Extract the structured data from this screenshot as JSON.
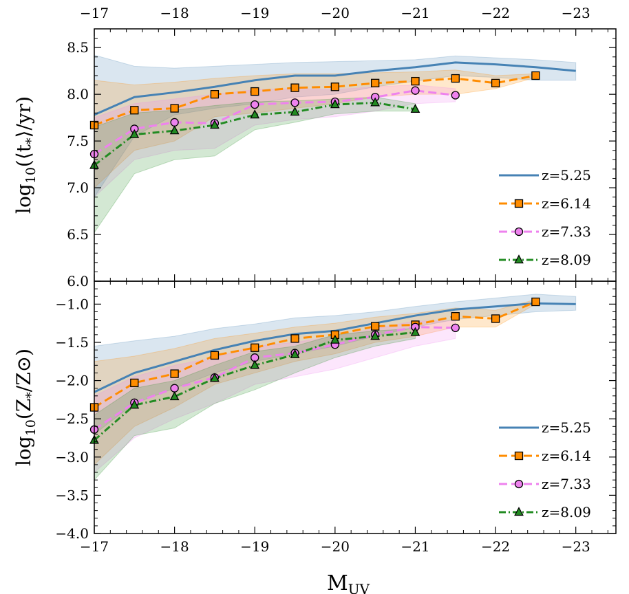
{
  "chart_data": [
    {
      "type": "line",
      "panel": "top",
      "ylabel_main": "log",
      "ylabel_sub": "10",
      "ylabel_rest": "(⟨t",
      "ylabel_star": "*",
      "ylabel_end": "⟩/yr)",
      "xlim": [
        -17,
        -23.5
      ],
      "ylim": [
        6.0,
        8.7
      ],
      "yticks": [
        6.0,
        6.5,
        7.0,
        7.5,
        8.0,
        8.5
      ],
      "ytick_labels": [
        "6.0",
        "6.5",
        "7.0",
        "7.5",
        "8.0",
        "8.5"
      ],
      "xticks": [
        -17,
        -18,
        -19,
        -20,
        -21,
        -22,
        -23
      ],
      "xtick_labels": [
        "−17",
        "−18",
        "−19",
        "−20",
        "−21",
        "−22",
        "−23"
      ],
      "legend_position": "lower-right",
      "series": [
        {
          "name": "z=5.25",
          "color": "#4682b4",
          "style": "solid",
          "marker": "none",
          "x": [
            -17,
            -17.5,
            -18,
            -18.5,
            -19,
            -19.5,
            -20,
            -20.5,
            -21,
            -21.5,
            -22,
            -22.5,
            -23
          ],
          "y": [
            7.78,
            7.97,
            8.02,
            8.08,
            8.15,
            8.2,
            8.2,
            8.25,
            8.29,
            8.34,
            8.32,
            8.29,
            8.25
          ],
          "band_lo": [
            6.9,
            7.55,
            7.78,
            7.85,
            7.9,
            7.97,
            8.0,
            8.08,
            8.14,
            8.2,
            8.18,
            8.15,
            8.15
          ],
          "band_hi": [
            8.42,
            8.3,
            8.28,
            8.3,
            8.32,
            8.34,
            8.35,
            8.36,
            8.37,
            8.41,
            8.39,
            8.37,
            8.34
          ]
        },
        {
          "name": "z=6.14",
          "color": "#ff8c00",
          "style": "dashed",
          "marker": "square",
          "x": [
            -17,
            -17.5,
            -18,
            -18.5,
            -19,
            -19.5,
            -20,
            -20.5,
            -21,
            -21.5,
            -22,
            -22.5
          ],
          "y": [
            7.67,
            7.83,
            7.85,
            8.0,
            8.03,
            8.07,
            8.08,
            8.12,
            8.14,
            8.17,
            8.12,
            8.2
          ],
          "band_lo": [
            7.0,
            7.4,
            7.5,
            7.76,
            7.8,
            7.85,
            7.9,
            7.97,
            8.0,
            8.0,
            8.06,
            8.18
          ],
          "band_hi": [
            8.15,
            8.1,
            8.13,
            8.17,
            8.2,
            8.22,
            8.22,
            8.23,
            8.24,
            8.26,
            8.2,
            8.22
          ]
        },
        {
          "name": "z=7.33",
          "color": "#ee82ee",
          "style": "dashed",
          "marker": "circle",
          "x": [
            -17,
            -17.5,
            -18,
            -18.5,
            -19,
            -19.5,
            -20,
            -20.5,
            -21,
            -21.5
          ],
          "y": [
            7.36,
            7.63,
            7.7,
            7.69,
            7.89,
            7.91,
            7.92,
            7.97,
            8.04,
            7.99
          ],
          "band_lo": [
            6.9,
            7.3,
            7.4,
            7.42,
            7.67,
            7.73,
            7.76,
            7.82,
            7.9,
            7.92
          ],
          "band_hi": [
            7.75,
            7.9,
            7.95,
            8.0,
            8.05,
            8.06,
            8.05,
            8.08,
            8.1,
            8.06
          ]
        },
        {
          "name": "z=8.09",
          "color": "#228b22",
          "style": "dashdot",
          "marker": "triangle",
          "x": [
            -17,
            -17.5,
            -18,
            -18.5,
            -19,
            -19.5,
            -20,
            -20.5,
            -21
          ],
          "y": [
            7.24,
            7.57,
            7.61,
            7.67,
            7.78,
            7.81,
            7.89,
            7.91,
            7.84
          ],
          "band_lo": [
            6.52,
            7.15,
            7.3,
            7.34,
            7.62,
            7.7,
            7.79,
            7.82,
            7.82
          ],
          "band_hi": [
            7.65,
            7.8,
            7.83,
            7.88,
            7.92,
            7.93,
            7.95,
            7.97,
            7.9
          ]
        }
      ]
    },
    {
      "type": "line",
      "panel": "bottom",
      "ylabel_main": "log",
      "ylabel_sub": "10",
      "ylabel_rest": "(Z",
      "ylabel_star": "*",
      "ylabel_end": "/Z⊙)",
      "xlabel_main": "M",
      "xlabel_sub": "UV",
      "xlim": [
        -17,
        -23.5
      ],
      "ylim": [
        -4.0,
        -0.7
      ],
      "yticks": [
        -4.0,
        -3.5,
        -3.0,
        -2.5,
        -2.0,
        -1.5,
        -1.0
      ],
      "ytick_labels": [
        "−4.0",
        "−3.5",
        "−3.0",
        "−2.5",
        "−2.0",
        "−1.5",
        "−1.0"
      ],
      "xticks": [
        -17,
        -18,
        -19,
        -20,
        -21,
        -22,
        -23
      ],
      "xtick_labels": [
        "−17",
        "−18",
        "−19",
        "−20",
        "−21",
        "−22",
        "−23"
      ],
      "legend_position": "lower-right",
      "series": [
        {
          "name": "z=5.25",
          "color": "#4682b4",
          "style": "solid",
          "marker": "none",
          "x": [
            -17,
            -17.5,
            -18,
            -18.5,
            -19,
            -19.5,
            -20,
            -20.5,
            -21,
            -21.5,
            -22,
            -22.5,
            -23
          ],
          "y": [
            -2.15,
            -1.9,
            -1.75,
            -1.6,
            -1.48,
            -1.39,
            -1.35,
            -1.25,
            -1.15,
            -1.07,
            -1.03,
            -0.99,
            -1.0
          ],
          "band_lo": [
            -2.7,
            -2.3,
            -2.1,
            -1.9,
            -1.75,
            -1.65,
            -1.55,
            -1.42,
            -1.3,
            -1.2,
            -1.15,
            -1.1,
            -1.08
          ],
          "band_hi": [
            -1.55,
            -1.48,
            -1.42,
            -1.32,
            -1.26,
            -1.18,
            -1.15,
            -1.1,
            -1.03,
            -0.97,
            -0.92,
            -0.87,
            -0.9
          ]
        },
        {
          "name": "z=6.14",
          "color": "#ff8c00",
          "style": "dashed",
          "marker": "square",
          "x": [
            -17,
            -17.5,
            -18,
            -18.5,
            -19,
            -19.5,
            -20,
            -20.5,
            -21,
            -21.5,
            -22,
            -22.5
          ],
          "y": [
            -2.35,
            -2.03,
            -1.91,
            -1.67,
            -1.57,
            -1.45,
            -1.4,
            -1.29,
            -1.27,
            -1.16,
            -1.19,
            -0.97
          ],
          "band_lo": [
            -3.1,
            -2.6,
            -2.35,
            -2.05,
            -1.9,
            -1.75,
            -1.65,
            -1.5,
            -1.42,
            -1.3,
            -1.3,
            -1.0
          ],
          "band_hi": [
            -1.75,
            -1.68,
            -1.58,
            -1.45,
            -1.38,
            -1.3,
            -1.25,
            -1.17,
            -1.12,
            -1.05,
            -1.08,
            -0.94
          ]
        },
        {
          "name": "z=7.33",
          "color": "#ee82ee",
          "style": "dashed",
          "marker": "circle",
          "x": [
            -17,
            -17.5,
            -18,
            -18.5,
            -19,
            -19.5,
            -20,
            -20.5,
            -21,
            -21.5
          ],
          "y": [
            -2.64,
            -2.29,
            -2.1,
            -1.96,
            -1.7,
            -1.64,
            -1.53,
            -1.4,
            -1.3,
            -1.31
          ],
          "band_lo": [
            -3.2,
            -2.75,
            -2.5,
            -2.3,
            -2.05,
            -1.95,
            -1.85,
            -1.7,
            -1.55,
            -1.45
          ],
          "band_hi": [
            -2.2,
            -1.95,
            -1.8,
            -1.7,
            -1.55,
            -1.5,
            -1.42,
            -1.32,
            -1.22,
            -1.22
          ]
        },
        {
          "name": "z=8.09",
          "color": "#228b22",
          "style": "dashdot",
          "marker": "triangle",
          "x": [
            -17,
            -17.5,
            -18,
            -18.5,
            -19,
            -19.5,
            -20,
            -20.5,
            -21
          ],
          "y": [
            -2.78,
            -2.32,
            -2.21,
            -1.97,
            -1.8,
            -1.66,
            -1.47,
            -1.42,
            -1.37
          ],
          "band_lo": [
            -3.3,
            -2.72,
            -2.62,
            -2.3,
            -2.12,
            -1.9,
            -1.7,
            -1.55,
            -1.45
          ],
          "band_hi": [
            -2.45,
            -2.1,
            -2.0,
            -1.8,
            -1.62,
            -1.55,
            -1.4,
            -1.35,
            -1.32
          ]
        }
      ]
    }
  ]
}
